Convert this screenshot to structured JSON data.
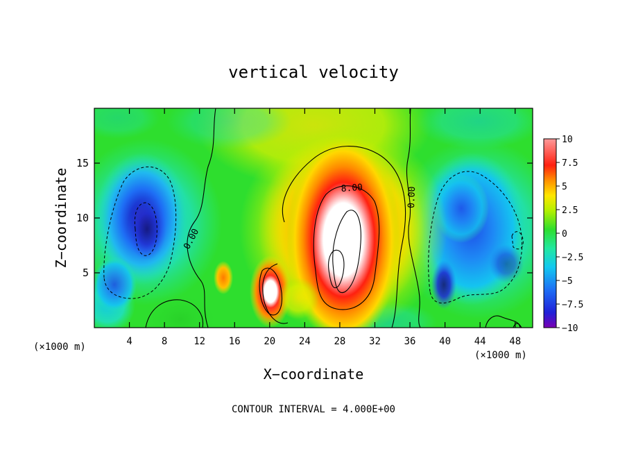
{
  "chart_data": {
    "type": "heatmap",
    "title": "vertical velocity",
    "xlabel": "X−coordinate",
    "ylabel": "Z−coordinate",
    "x_unit_left": "(×1000 m)",
    "x_unit_right": "(×1000 m)",
    "footer": "CONTOUR INTERVAL = 4.000E+00",
    "xlim": [
      0,
      50
    ],
    "ylim": [
      0,
      20
    ],
    "x_ticks": [
      4,
      8,
      12,
      16,
      20,
      24,
      28,
      32,
      36,
      40,
      44,
      48
    ],
    "y_ticks": [
      5,
      10,
      15
    ],
    "colorbar": {
      "range": [
        -10,
        10
      ],
      "ticks": [
        10,
        7.5,
        5,
        2.5,
        0,
        -2.5,
        -5,
        -7.5,
        -10
      ],
      "tick_labels": [
        "10",
        "7.5",
        "5",
        "2.5",
        "0",
        "−2.5",
        "−5",
        "−7.5",
        "−10"
      ],
      "colors": [
        "#7a00b4",
        "#2020d8",
        "#1e6ef5",
        "#12c8f0",
        "#22e8a0",
        "#2ede2e",
        "#b4f000",
        "#ffe600",
        "#ff9000",
        "#ff2010",
        "#ff8c8c",
        "#ffffff"
      ]
    },
    "contour_labels": [
      "0.00",
      "0.00",
      "8.00"
    ],
    "features": [
      {
        "name": "updraft-main",
        "x": 28.5,
        "z": 8.5,
        "value": 14
      },
      {
        "name": "updraft-small",
        "x": 20.0,
        "z": 3.5,
        "value": 12
      },
      {
        "name": "downdraft-left",
        "x": 6.0,
        "z": 10.0,
        "value": -8
      },
      {
        "name": "downdraft-right",
        "x": 42.0,
        "z": 7.0,
        "value": -5
      }
    ]
  }
}
